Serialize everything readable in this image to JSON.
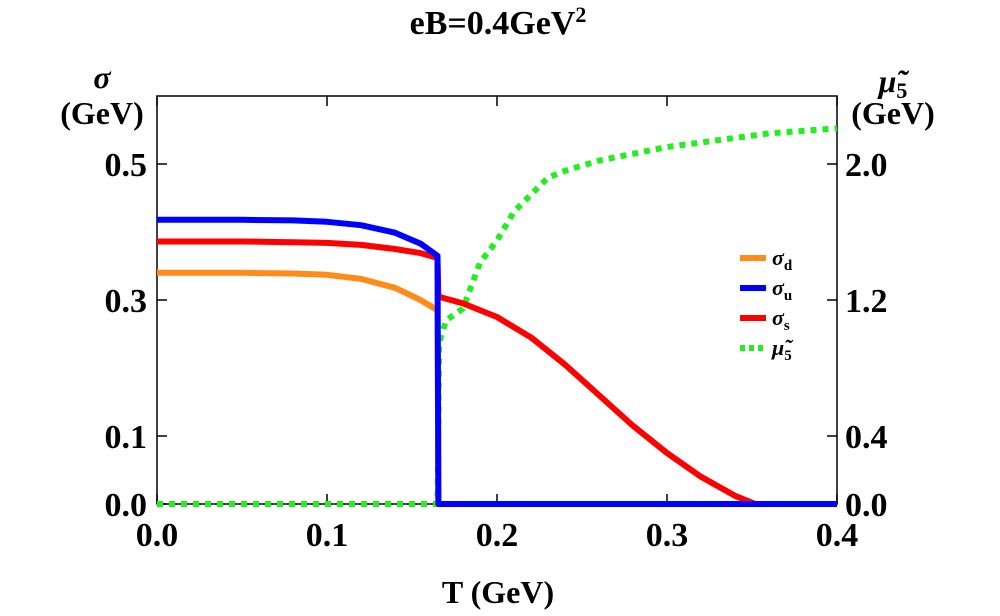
{
  "chart_data": {
    "type": "line",
    "title": "eB=0.4GeV",
    "title_superscript": "2",
    "xlabel": "T (GeV)",
    "ylabel_left_symbol": "σ",
    "ylabel_left_unit": "(GeV)",
    "ylabel_right_symbol": "μ̃",
    "ylabel_right_sub": "5",
    "ylabel_right_unit": "(GeV)",
    "xlim": [
      0,
      0.4
    ],
    "ylim_left": [
      0,
      0.6
    ],
    "ylim_right": [
      0,
      2.4
    ],
    "x_ticks": [
      "0.0",
      "0.1",
      "0.2",
      "0.3",
      "0.4"
    ],
    "y_left_ticks": [
      "0.0",
      "0.1",
      "0.3",
      "0.5"
    ],
    "y_right_ticks": [
      "0.0",
      "0.4",
      "1.2",
      "2.0"
    ],
    "legend": [
      {
        "symbol": "σ",
        "sub": "d",
        "color": "#ff8c1a"
      },
      {
        "symbol": "σ",
        "sub": "u",
        "color": "#0000ff"
      },
      {
        "symbol": "σ",
        "sub": "s",
        "color": "#ff0000"
      },
      {
        "symbol": "μ̃",
        "sub": "5",
        "color": "#22ee22"
      }
    ],
    "series": [
      {
        "name": "σ_d",
        "axis": "left",
        "color": "#ff8c1a",
        "style": "solid",
        "x": [
          0.0,
          0.05,
          0.08,
          0.1,
          0.12,
          0.14,
          0.155,
          0.165,
          0.1655,
          0.4
        ],
        "y": [
          0.34,
          0.34,
          0.339,
          0.337,
          0.331,
          0.318,
          0.3,
          0.285,
          0.0,
          0.0
        ]
      },
      {
        "name": "σ_u",
        "axis": "left",
        "color": "#0000ff",
        "style": "solid",
        "x": [
          0.0,
          0.05,
          0.08,
          0.1,
          0.12,
          0.14,
          0.155,
          0.165,
          0.1655,
          0.4
        ],
        "y": [
          0.418,
          0.418,
          0.417,
          0.415,
          0.41,
          0.399,
          0.383,
          0.365,
          0.0,
          0.0
        ]
      },
      {
        "name": "σ_s",
        "axis": "left",
        "color": "#ff0000",
        "style": "solid",
        "x": [
          0.0,
          0.05,
          0.08,
          0.1,
          0.12,
          0.14,
          0.155,
          0.165,
          0.1655,
          0.18,
          0.2,
          0.22,
          0.24,
          0.26,
          0.28,
          0.3,
          0.32,
          0.34,
          0.352,
          0.4
        ],
        "y": [
          0.386,
          0.386,
          0.385,
          0.384,
          0.381,
          0.375,
          0.369,
          0.362,
          0.305,
          0.295,
          0.275,
          0.245,
          0.205,
          0.16,
          0.115,
          0.075,
          0.04,
          0.012,
          0.0,
          0.0
        ]
      },
      {
        "name": "μ̃_5",
        "axis": "right",
        "color": "#22ee22",
        "style": "dotted",
        "x": [
          0.0,
          0.165,
          0.166,
          0.17,
          0.18,
          0.19,
          0.2,
          0.21,
          0.22,
          0.23,
          0.24,
          0.26,
          0.28,
          0.3,
          0.33,
          0.36,
          0.4
        ],
        "y": [
          0.0,
          0.0,
          0.95,
          1.08,
          1.15,
          1.42,
          1.55,
          1.72,
          1.82,
          1.92,
          1.96,
          2.02,
          2.06,
          2.1,
          2.14,
          2.18,
          2.21
        ]
      }
    ]
  }
}
